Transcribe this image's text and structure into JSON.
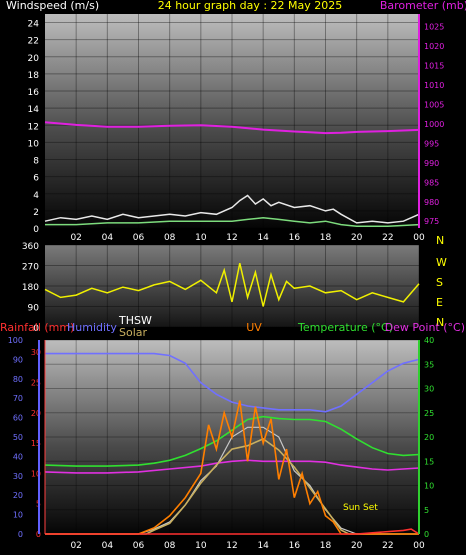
{
  "header": {
    "title": "24 hour graph day : 22 May 2025"
  },
  "colors": {
    "wind_gust": "#e8e8e8",
    "wind_avg": "#7ddc7d",
    "barometer": "#e020e0",
    "direction": "#f0f000",
    "rain_axis": "#ff3030",
    "humidity": "#7070ff",
    "thsw": "#ffffff",
    "solar": "#c9b060",
    "uv": "#ff7f00",
    "temperature": "#30e030",
    "dew_point": "#e030e0",
    "solar_curve": "#c8c8c8"
  },
  "chart_data": [
    {
      "type": "line",
      "ylabel_left": "Windspeed (m/s)",
      "ylabel_right": "Barometer (mb)",
      "xticks": [
        "02",
        "04",
        "06",
        "08",
        "10",
        "12",
        "14",
        "16",
        "18",
        "20",
        "22",
        "00"
      ],
      "y_left_ticks": [
        "0",
        "2",
        "4",
        "6",
        "8",
        "10",
        "12",
        "14",
        "16",
        "18",
        "20",
        "22",
        "24"
      ],
      "y_right_ticks": [
        "975",
        "980",
        "985",
        "990",
        "995",
        "1000",
        "1005",
        "1010",
        "1015",
        "1020",
        "1025"
      ],
      "ylim_left": [
        0,
        25
      ],
      "ylim_right": [
        973,
        1028
      ],
      "xlim": [
        0,
        24
      ],
      "grid": true,
      "series": [
        {
          "name": "",
          "axis": "left",
          "x": [
            0,
            1,
            2,
            3,
            4,
            5,
            6,
            7,
            8,
            9,
            10,
            11,
            12,
            12.5,
            13,
            13.5,
            14,
            14.5,
            15,
            16,
            17,
            18,
            18.5,
            19,
            20,
            21,
            22,
            23,
            24
          ],
          "values": [
            0.8,
            1.2,
            1.0,
            1.4,
            1.0,
            1.6,
            1.2,
            1.4,
            1.6,
            1.4,
            1.8,
            1.6,
            2.4,
            3.2,
            3.8,
            2.8,
            3.4,
            2.6,
            3.0,
            2.4,
            2.6,
            2.0,
            2.2,
            1.6,
            0.6,
            0.8,
            0.6,
            0.8,
            1.6
          ]
        },
        {
          "name": "",
          "axis": "left",
          "x": [
            0,
            2,
            4,
            6,
            8,
            10,
            12,
            13,
            14,
            15,
            16,
            17,
            18,
            19,
            20,
            22,
            24
          ],
          "values": [
            0.4,
            0.4,
            0.6,
            0.6,
            0.8,
            0.8,
            0.8,
            1.0,
            1.2,
            1.0,
            0.8,
            0.6,
            0.8,
            0.4,
            0.2,
            0.2,
            0.4
          ]
        },
        {
          "name": "",
          "axis": "right",
          "x": [
            0,
            2,
            4,
            6,
            8,
            10,
            12,
            14,
            16,
            17,
            18,
            19,
            20,
            22,
            24
          ],
          "values": [
            1000.2,
            999.5,
            999.0,
            999.0,
            999.3,
            999.4,
            999.0,
            998.3,
            997.8,
            997.6,
            997.4,
            997.5,
            997.7,
            997.9,
            998.2
          ]
        }
      ]
    },
    {
      "type": "line",
      "right_labels": [
        "N",
        "W",
        "S",
        "E",
        "N"
      ],
      "y_left_ticks": [
        "0",
        "90",
        "180",
        "270",
        "360"
      ],
      "ylim": [
        0,
        360
      ],
      "xlim": [
        0,
        24
      ],
      "grid": true,
      "series": [
        {
          "name": "",
          "x": [
            0,
            1,
            2,
            3,
            4,
            5,
            6,
            7,
            8,
            9,
            10,
            11,
            11.5,
            12,
            12.5,
            13,
            13.5,
            14,
            14.5,
            15,
            15.5,
            16,
            17,
            18,
            19,
            20,
            21,
            22,
            23,
            24
          ],
          "values": [
            165,
            130,
            140,
            170,
            150,
            175,
            160,
            185,
            200,
            165,
            205,
            150,
            250,
            110,
            280,
            130,
            240,
            90,
            230,
            120,
            200,
            170,
            180,
            150,
            160,
            120,
            150,
            130,
            110,
            190
          ]
        }
      ]
    },
    {
      "type": "line",
      "ylabel_left_1": "Rainfall (mm)",
      "ylabel_left_2": "Humidity",
      "ylabel_center_1": "THSW",
      "ylabel_center_2": "Solar",
      "ylabel_center_3": "UV",
      "ylabel_right_1": "Temperature (°C)",
      "ylabel_right_2": "Dew Point (°C)",
      "humidity_ticks": [
        "0",
        "10",
        "20",
        "30",
        "40",
        "50",
        "60",
        "70",
        "80",
        "90",
        "100"
      ],
      "uv_ticks": [
        "0",
        "5",
        "10",
        "15",
        "20",
        "25",
        "30"
      ],
      "temp_ticks": [
        "0",
        "5",
        "10",
        "15",
        "20",
        "25",
        "30",
        "35",
        "40"
      ],
      "xticks": [
        "02",
        "04",
        "06",
        "08",
        "10",
        "12",
        "14",
        "16",
        "18",
        "20",
        "22",
        "00"
      ],
      "annotation": "Sun Set",
      "xlim": [
        0,
        24
      ],
      "grid": true,
      "series": [
        {
          "name": "",
          "axis": "humidity",
          "x": [
            0,
            2,
            4,
            6,
            7,
            8,
            9,
            10,
            11,
            12,
            13,
            14,
            15,
            16,
            17,
            18,
            19,
            20,
            21,
            22,
            23,
            24
          ],
          "values": [
            93,
            93,
            93,
            93,
            93,
            92,
            88,
            78,
            72,
            68,
            66,
            65,
            64,
            64,
            64,
            63,
            66,
            72,
            78,
            84,
            88,
            90
          ]
        },
        {
          "name": "",
          "axis": "temp",
          "x": [
            0,
            2,
            4,
            6,
            7,
            8,
            9,
            10,
            11,
            12,
            13,
            14,
            15,
            16,
            17,
            18,
            19,
            20,
            21,
            22,
            23,
            24
          ],
          "values": [
            14.2,
            14.0,
            14.0,
            14.2,
            14.6,
            15.2,
            16.2,
            17.6,
            19.2,
            21.4,
            23.6,
            24.2,
            23.8,
            23.6,
            23.6,
            23.2,
            21.6,
            19.6,
            17.8,
            16.6,
            16.2,
            16.4
          ]
        },
        {
          "name": "",
          "axis": "temp",
          "x": [
            0,
            2,
            4,
            6,
            8,
            10,
            11,
            12,
            13,
            14,
            15,
            16,
            17,
            18,
            19,
            20,
            21,
            22,
            23,
            24
          ],
          "values": [
            12.8,
            12.6,
            12.6,
            12.8,
            13.4,
            14.0,
            14.6,
            15.0,
            15.2,
            15.0,
            15.0,
            15.0,
            15.0,
            14.8,
            14.2,
            13.8,
            13.4,
            13.2,
            13.4,
            13.6
          ]
        },
        {
          "name": "",
          "axis": "temp",
          "x": [
            0,
            5,
            6,
            7,
            8,
            9,
            10,
            11,
            12,
            13,
            14,
            15,
            16,
            17,
            18,
            19,
            20,
            24
          ],
          "values": [
            0,
            0,
            0,
            1.0,
            2.5,
            6,
            11,
            14,
            20,
            22,
            22,
            20,
            13,
            10,
            5,
            1.2,
            0,
            0
          ]
        },
        {
          "name": "",
          "axis": "temp",
          "x": [
            0,
            6,
            6.5,
            7,
            8,
            9,
            10,
            11,
            12,
            13,
            14,
            15,
            16,
            17,
            18,
            19,
            19.5,
            20,
            24
          ],
          "values": [
            0,
            0,
            0,
            0.8,
            2.2,
            6,
            10.5,
            14.2,
            17.5,
            18.2,
            19.6,
            17.3,
            13.8,
            9.5,
            5.2,
            0.8,
            0,
            0,
            0
          ]
        },
        {
          "name": "",
          "axis": "uv",
          "x": [
            0,
            6,
            7,
            8,
            9,
            10,
            10.5,
            11,
            11.5,
            12,
            12.5,
            13,
            13.5,
            14,
            14.5,
            15,
            15.5,
            16,
            16.5,
            17,
            17.5,
            18,
            18.5,
            19,
            24
          ],
          "values": [
            0,
            0,
            1,
            3,
            6,
            10,
            18,
            14,
            20,
            16,
            22,
            12,
            21,
            15,
            19,
            9,
            14,
            6,
            10,
            5,
            7,
            3,
            2,
            0,
            0
          ]
        },
        {
          "name": "",
          "axis": "uv",
          "x": [
            0,
            20,
            23,
            23.5,
            24
          ],
          "values": [
            0,
            0,
            0.6,
            0.8,
            0
          ]
        }
      ]
    }
  ]
}
